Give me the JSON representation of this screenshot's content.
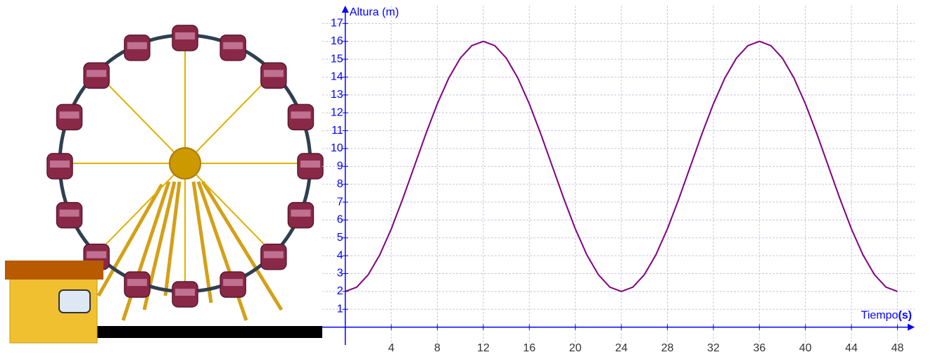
{
  "chart_data": {
    "type": "line",
    "y_label": "Altura (m)",
    "x_label": "Tiempo",
    "x_unit": "(s)",
    "x": [
      0,
      1,
      2,
      3,
      4,
      5,
      6,
      7,
      8,
      9,
      10,
      11,
      12,
      13,
      14,
      15,
      16,
      17,
      18,
      19,
      20,
      21,
      22,
      23,
      24,
      25,
      26,
      27,
      28,
      29,
      30,
      31,
      32,
      33,
      34,
      35,
      36,
      37,
      38,
      39,
      40,
      41,
      42,
      43,
      44,
      45,
      46,
      47,
      48
    ],
    "series": [
      {
        "color": "#800080",
        "values": [
          2,
          2.24,
          2.94,
          4.05,
          5.5,
          7.19,
          9,
          10.81,
          12.5,
          13.95,
          15.06,
          15.76,
          16,
          15.76,
          15.06,
          13.95,
          12.5,
          10.81,
          9,
          7.19,
          5.5,
          4.05,
          2.94,
          2.24,
          2,
          2.24,
          2.94,
          4.05,
          5.5,
          7.19,
          9,
          10.81,
          12.5,
          13.95,
          15.06,
          15.76,
          16,
          15.76,
          15.06,
          13.95,
          12.5,
          10.81,
          9,
          7.19,
          5.5,
          4.05,
          2.94,
          2.24,
          2
        ]
      }
    ],
    "xlim": [
      -2,
      49.5
    ],
    "ylim": [
      -1,
      18
    ],
    "xticks": [
      4,
      8,
      12,
      16,
      20,
      24,
      28,
      32,
      36,
      40,
      44,
      48
    ],
    "yticks": [
      1,
      2,
      3,
      4,
      5,
      6,
      7,
      8,
      9,
      10,
      11,
      12,
      13,
      14,
      15,
      16,
      17
    ],
    "grid": true
  }
}
